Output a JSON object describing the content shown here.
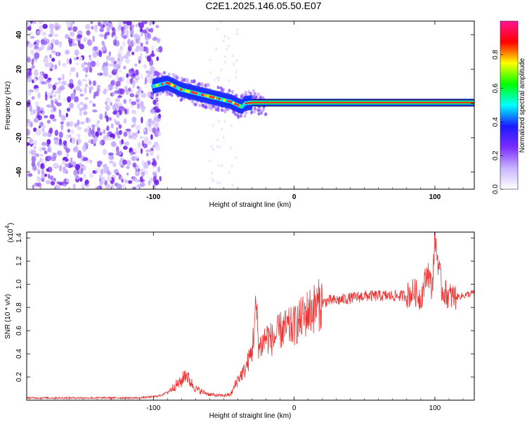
{
  "title": "C2E1.2025.146.05.50.E07",
  "chart_data": [
    {
      "type": "heatmap",
      "xlabel": "Height of straight line (km)",
      "ylabel": "Frequency (Hz)",
      "xlim": [
        -190,
        128
      ],
      "ylim": [
        -50,
        48
      ],
      "x_ticks": [
        -100,
        0,
        100
      ],
      "x_tick_labels": [
        "-100",
        "0",
        "100"
      ],
      "y_ticks": [
        -40,
        -20,
        0,
        20,
        40
      ],
      "y_tick_labels": [
        "-40",
        "-20",
        "0",
        "20",
        "40"
      ],
      "noise_region_x": [
        -190,
        -95
      ],
      "ridge": {
        "x": [
          -100,
          -95,
          -90,
          -85,
          -80,
          -75,
          -70,
          -65,
          -60,
          -55,
          -50,
          -45,
          -40,
          -37,
          -35,
          -30,
          -20,
          -10,
          0,
          10,
          20,
          40,
          60,
          80,
          100,
          128
        ],
        "y": [
          10,
          11,
          12,
          10,
          8,
          7,
          6,
          5,
          4,
          3,
          2,
          1,
          -1,
          -2,
          0,
          0.5,
          0.5,
          0.5,
          0.5,
          0.5,
          0.5,
          0.5,
          0.5,
          0.5,
          0.5,
          0.5
        ]
      },
      "colorbar": {
        "label": "Normalized spectral amplitude",
        "range": [
          0,
          1
        ],
        "ticks": [
          0.0,
          0.2,
          0.4,
          0.6,
          0.8
        ],
        "tick_labels": [
          "0.0",
          "0.2",
          "0.4",
          "0.6",
          "0.8"
        ],
        "colors": [
          "#ffffff",
          "#c8b4ff",
          "#7b2cff",
          "#1a1aff",
          "#00ffff",
          "#00ff00",
          "#ffff00",
          "#ff0000",
          "#ff1493"
        ]
      },
      "grid": false
    },
    {
      "type": "line",
      "xlabel": "Height of straight line (km)",
      "ylabel": "SNR (10 * v/v)",
      "y_multiplier_label": "(x10",
      "y_multiplier_exponent": "4",
      "xlim": [
        -190,
        128
      ],
      "ylim": [
        0,
        1.45
      ],
      "x_ticks": [
        -100,
        0,
        100
      ],
      "x_tick_labels": [
        "-100",
        "0",
        "100"
      ],
      "y_ticks": [
        0.2,
        0.4,
        0.6,
        0.8,
        1.0,
        1.2,
        1.4
      ],
      "y_tick_labels": [
        "0.2",
        "0.4",
        "0.6",
        "0.8",
        "1.0",
        "1.2",
        "1.4"
      ],
      "series": [
        {
          "color": "#ee3333",
          "x": [
            -190,
            -170,
            -150,
            -130,
            -110,
            -100,
            -95,
            -90,
            -85,
            -80,
            -77,
            -75,
            -72,
            -70,
            -65,
            -60,
            -55,
            -50,
            -45,
            -40,
            -35,
            -30,
            -27,
            -25,
            -22,
            -20,
            -15,
            -10,
            -5,
            0,
            5,
            10,
            15,
            20,
            25,
            30,
            40,
            50,
            60,
            70,
            80,
            85,
            90,
            95,
            98,
            100,
            105,
            110,
            115,
            120,
            128
          ],
          "y": [
            0.02,
            0.02,
            0.02,
            0.02,
            0.02,
            0.03,
            0.04,
            0.07,
            0.12,
            0.16,
            0.24,
            0.18,
            0.13,
            0.1,
            0.07,
            0.05,
            0.04,
            0.04,
            0.05,
            0.18,
            0.26,
            0.42,
            0.8,
            0.45,
            0.5,
            0.55,
            0.52,
            0.6,
            0.62,
            0.64,
            0.7,
            0.76,
            0.8,
            0.84,
            0.86,
            0.86,
            0.88,
            0.9,
            0.9,
            0.9,
            0.9,
            0.94,
            0.88,
            1.12,
            0.95,
            1.4,
            0.95,
            0.9,
            0.89,
            0.9,
            0.93
          ]
        }
      ],
      "grid": false
    }
  ]
}
